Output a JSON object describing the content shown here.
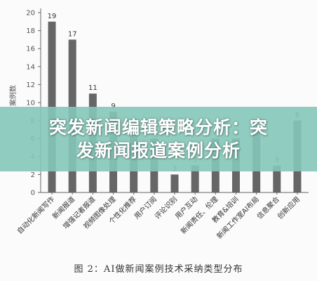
{
  "chart_data": {
    "type": "bar",
    "ylabel": "案例数",
    "ylim": [
      0,
      20
    ],
    "yticks": [
      0,
      2,
      4,
      6,
      8,
      10,
      12,
      14,
      16,
      18,
      20
    ],
    "categories": [
      "自动化新闻写作",
      "新闻报道",
      "增强记者报道",
      "视频图像处理",
      "个性化推荐",
      "用户订阅",
      "评论识别",
      "用户互动",
      "新闻责任、伦理",
      "教育&培训",
      "新闻工作室AI布局",
      "信息聚合",
      "创新应用"
    ],
    "values": [
      19,
      17,
      11,
      9,
      7,
      6,
      2,
      3,
      6,
      6,
      7,
      3,
      8
    ],
    "bar_color": "#666666",
    "grid": false,
    "legend": "none"
  },
  "banner": {
    "line1": "突发新闻编辑策略分析：突",
    "line2": "发新闻报道案例分析",
    "color": "#84c6b8"
  },
  "caption": "图 2：AI做新闻案例技术采纳类型分布"
}
